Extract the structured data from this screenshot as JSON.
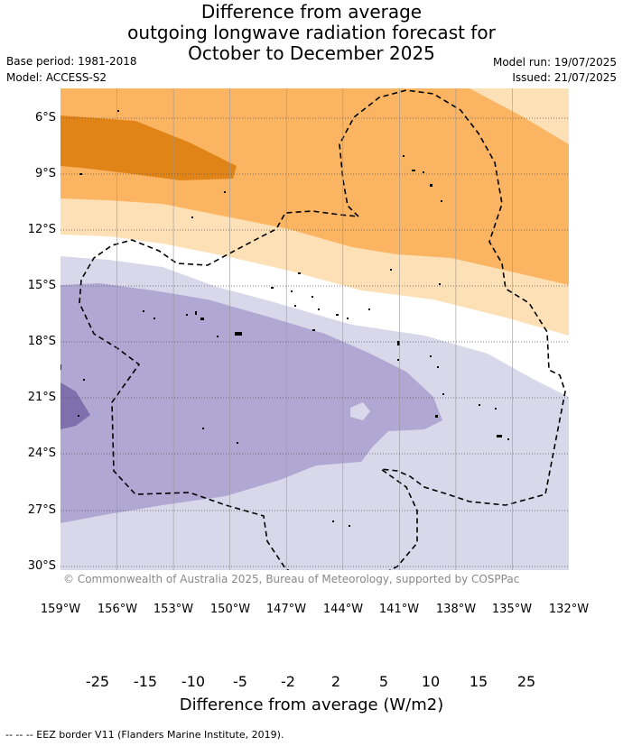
{
  "header": {
    "title_line1": "Difference from average",
    "title_line2": "outgoing longwave radiation forecast for",
    "title_line3": "October to December 2025",
    "base_period": "Base period: 1981-2018",
    "model": "Model: ACCESS-S2",
    "model_run": "Model run: 19/07/2025",
    "issued": "Issued: 21/07/2025"
  },
  "map": {
    "latitude_labels": [
      "6°S",
      "9°S",
      "12°S",
      "15°S",
      "18°S",
      "21°S",
      "24°S",
      "27°S",
      "30°S"
    ],
    "longitude_labels": [
      "159°W",
      "156°W",
      "153°W",
      "150°W",
      "147°W",
      "144°W",
      "141°W",
      "138°W",
      "135°W",
      "132°W"
    ],
    "copyright": "© Commonwealth of Australia 2025, Bureau of Meteorology, supported by COSPPac"
  },
  "colorbar": {
    "ticks": [
      "-25",
      "-15",
      "-10",
      "-5",
      "-2",
      "2",
      "5",
      "10",
      "15",
      "25"
    ],
    "colors": [
      "#5a2a8a",
      "#7f6fac",
      "#b0a8d2",
      "#d8d8ea",
      "#ffffff",
      "#fde0b6",
      "#fbb462",
      "#e08417",
      "#b35806"
    ],
    "low_extend_color": "#2d004b",
    "high_extend_color": "#7f3b08",
    "label": "Difference from average (W/m2)"
  },
  "footer": {
    "legend": "--  --  -- EEZ border V11 (Flanders Marine Institute, 2019)."
  }
}
